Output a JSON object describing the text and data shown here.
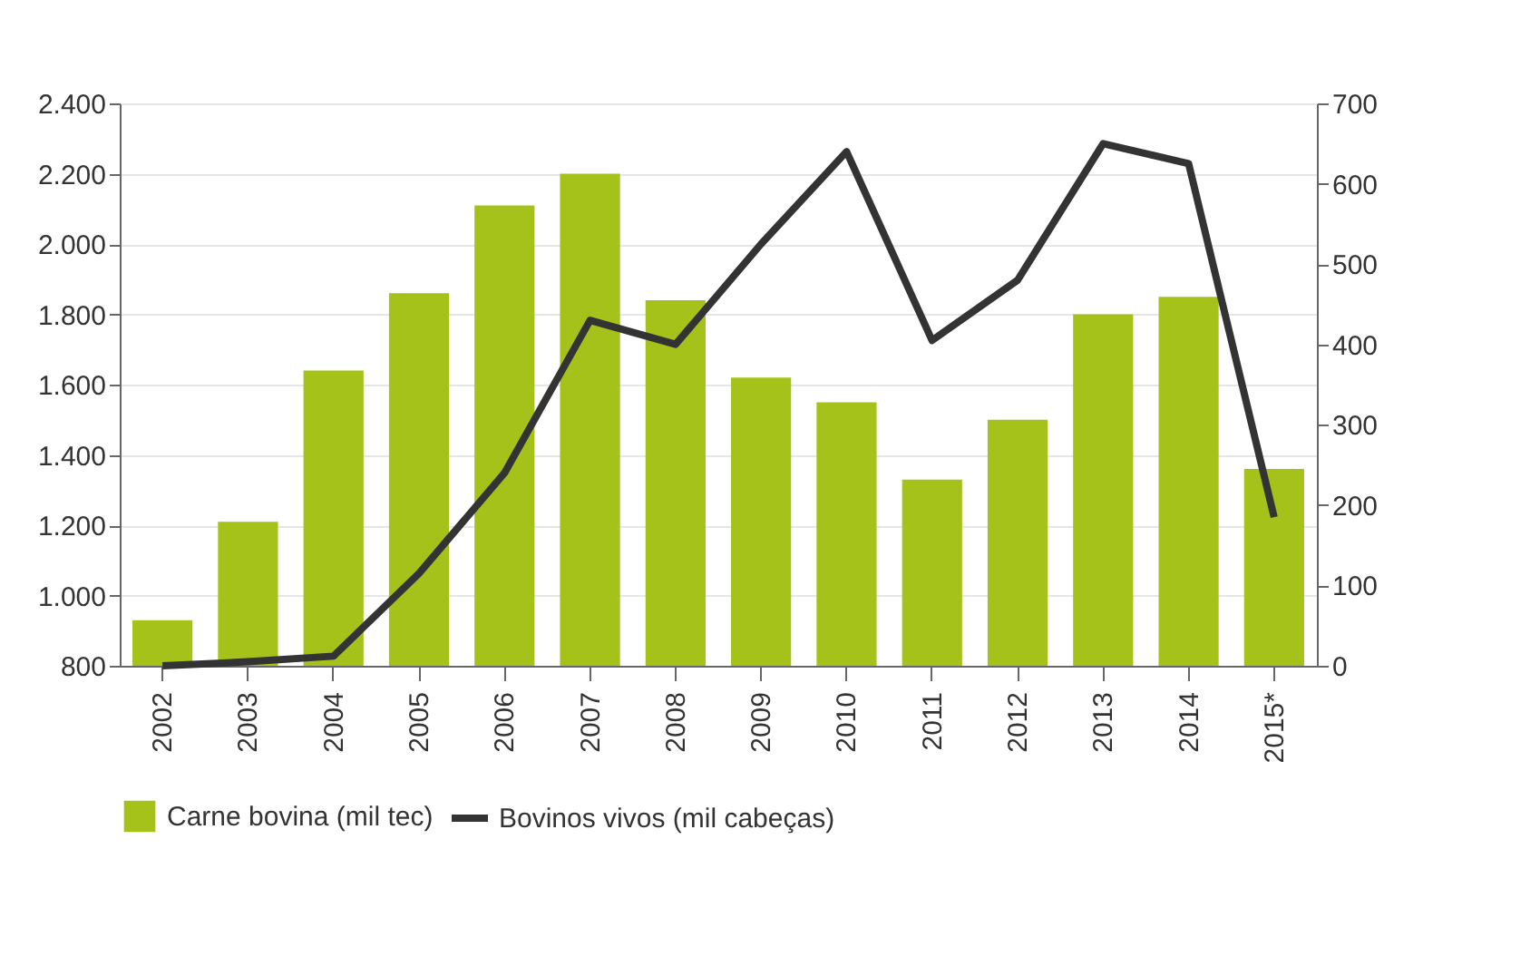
{
  "chart_data": {
    "type": "bar",
    "categories": [
      "2002",
      "2003",
      "2004",
      "2005",
      "2006",
      "2007",
      "2008",
      "2009",
      "2010",
      "2011",
      "2012",
      "2013",
      "2014",
      "2015*"
    ],
    "series": [
      {
        "name": "Carne bovina (mil tec)",
        "color": "#a4c21a",
        "values": [
          930,
          1210,
          1640,
          1860,
          2110,
          2200,
          1840,
          1620,
          1550,
          1330,
          1500,
          1800,
          1850,
          1360
        ]
      },
      {
        "name": "Bovinos vivos  (mil cabeças)",
        "type": "line",
        "axis": "y2",
        "color": "#333333",
        "values": [
          0,
          5,
          12,
          115,
          240,
          430,
          400,
          525,
          640,
          405,
          480,
          650,
          625,
          185
        ]
      }
    ],
    "ylim": [
      800,
      2400
    ],
    "yticks": [
      {
        "value": 800,
        "label": "800"
      },
      {
        "value": 1000,
        "label": "1.000"
      },
      {
        "value": 1200,
        "label": "1.200"
      },
      {
        "value": 1400,
        "label": "1.400"
      },
      {
        "value": 1600,
        "label": "1.600"
      },
      {
        "value": 1800,
        "label": "1.800"
      },
      {
        "value": 2000,
        "label": "2.000"
      },
      {
        "value": 2200,
        "label": "2.200"
      },
      {
        "value": 2400,
        "label": "2.400"
      }
    ],
    "y2lim": [
      0,
      700
    ],
    "y2ticks": [
      0,
      100,
      200,
      300,
      400,
      500,
      600,
      700
    ],
    "grid": "y",
    "legend": "bottom",
    "line_style": "solid"
  }
}
